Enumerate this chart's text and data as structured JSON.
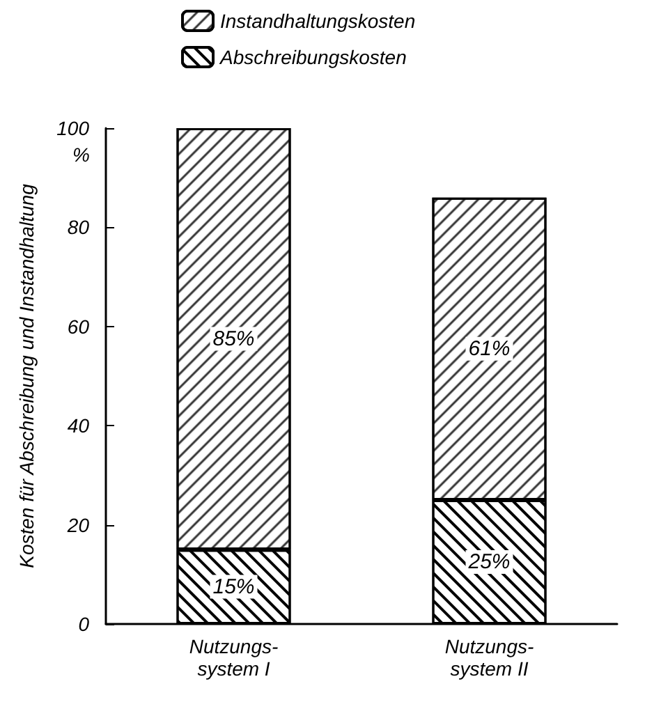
{
  "chart_data": {
    "type": "bar",
    "stacked": true,
    "ylabel": "Kosten für Abschreibung und Instandhaltung",
    "categories": [
      "Nutzungs-\nsystem I",
      "Nutzungs-\nsystem II"
    ],
    "series": [
      {
        "name": "Abschreibungskosten",
        "color": "#000000",
        "values": [
          15,
          25
        ],
        "value_labels": [
          "15%",
          "25%"
        ]
      },
      {
        "name": "Instandhaltungskosten",
        "color": "#000000",
        "values": [
          85,
          61
        ],
        "value_labels": [
          "85%",
          "61%"
        ]
      }
    ],
    "ylim": [
      0,
      100
    ],
    "yticks": [
      0,
      20,
      40,
      60,
      80,
      100
    ],
    "annotations": [
      "%"
    ],
    "grid": false,
    "legend": "top left"
  }
}
